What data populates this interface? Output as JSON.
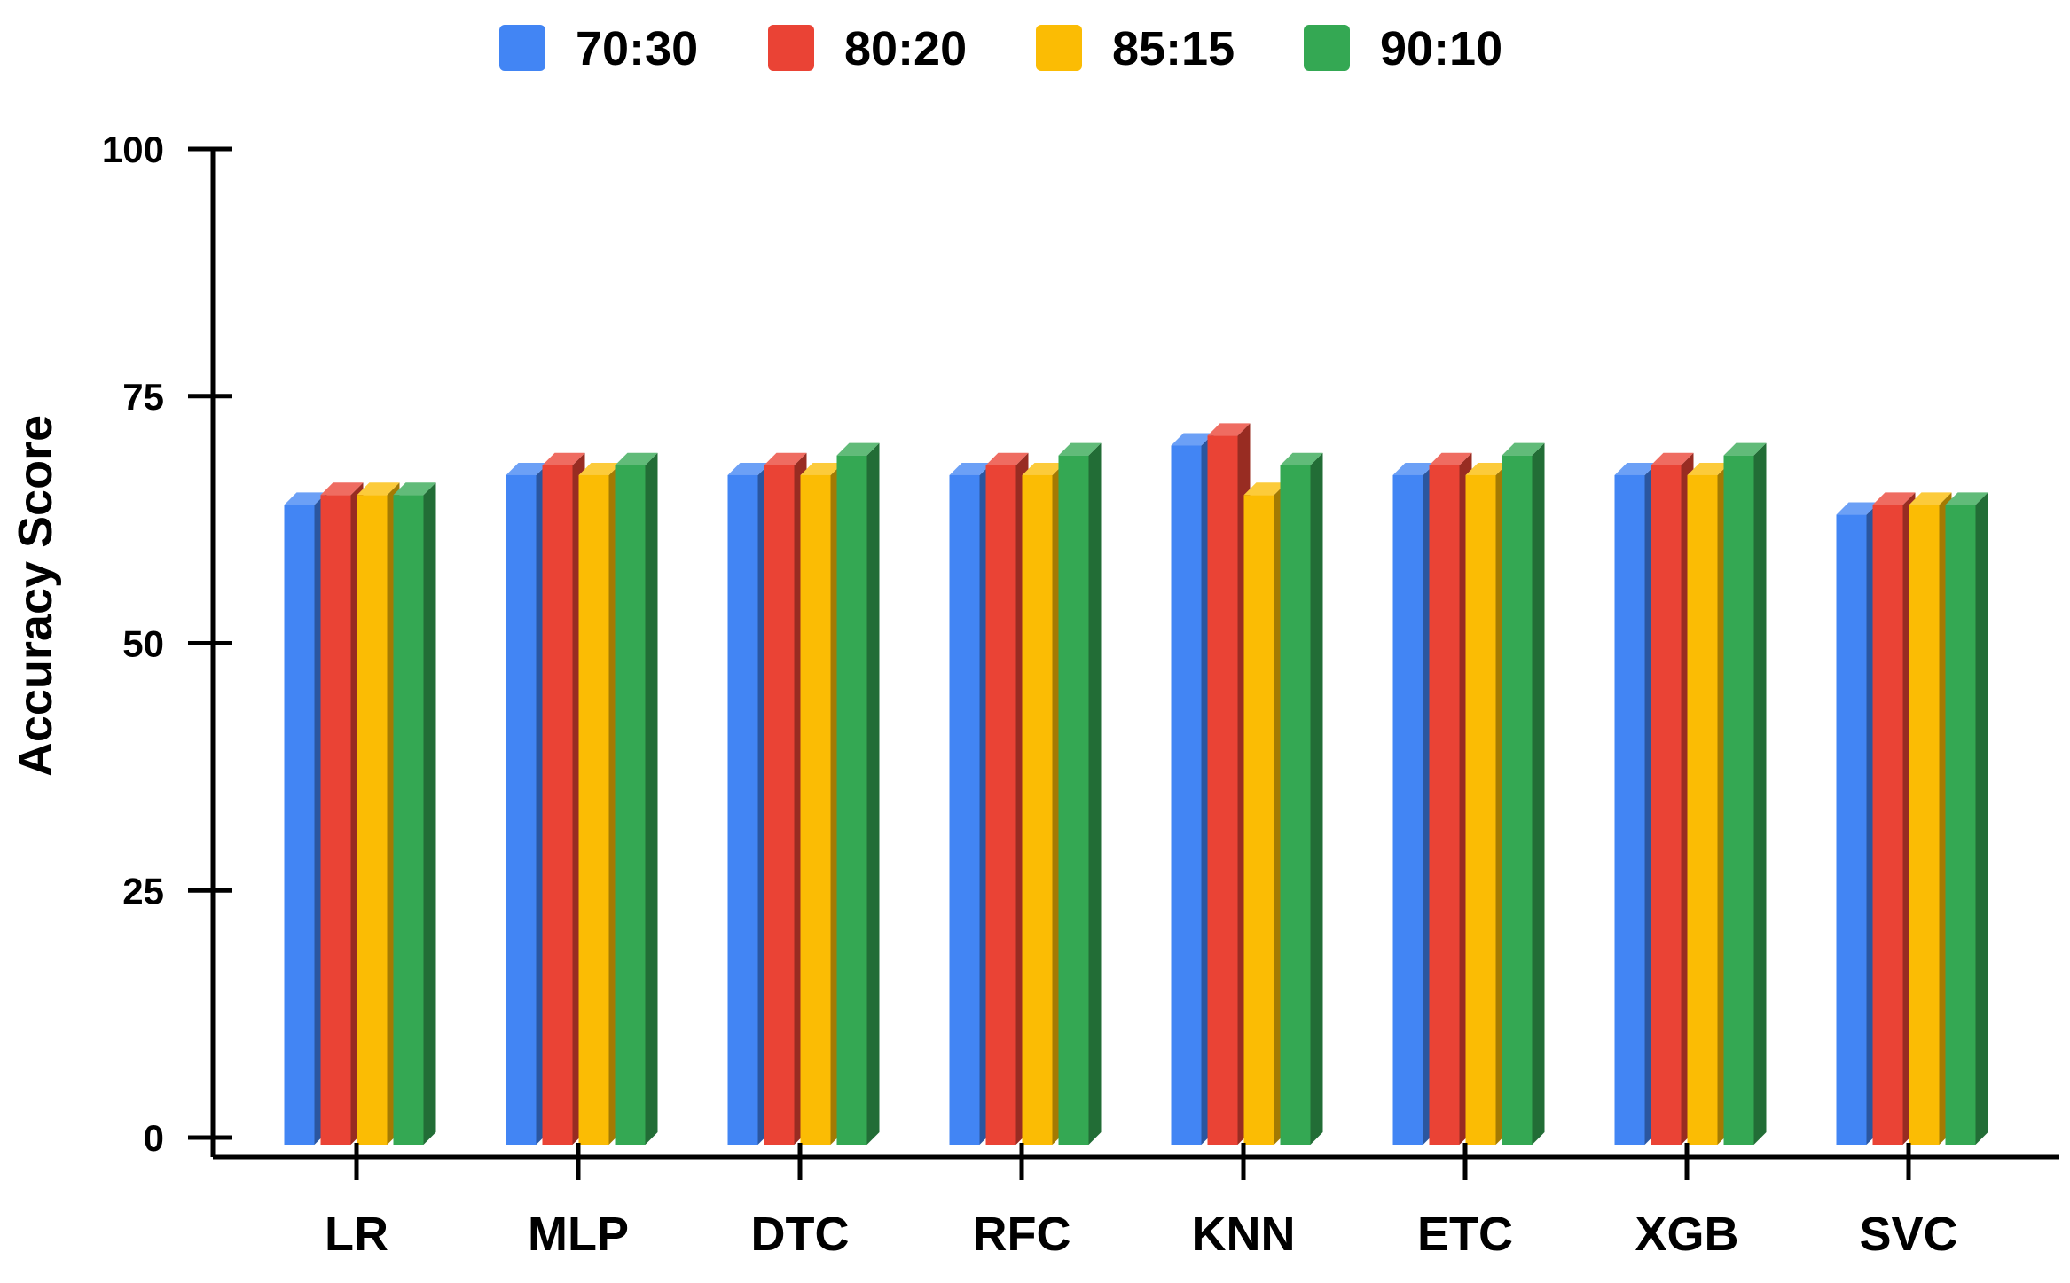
{
  "chart_data": {
    "type": "bar",
    "title": "",
    "xlabel": "",
    "ylabel": "Accuracy Score",
    "ylim": [
      0,
      100
    ],
    "yticks": [
      "0",
      "25",
      "50",
      "75",
      "100"
    ],
    "categories": [
      "LR",
      "MLP",
      "DTC",
      "RFC",
      "KNN",
      "ETC",
      "XGB",
      "SVC"
    ],
    "series": [
      {
        "name": "70:30",
        "color": "#4285F4",
        "values": [
          64,
          67,
          67,
          67,
          70,
          67,
          67,
          63
        ]
      },
      {
        "name": "80:20",
        "color": "#EA4335",
        "values": [
          65,
          68,
          68,
          68,
          71,
          68,
          68,
          64
        ]
      },
      {
        "name": "85:15",
        "color": "#FBBC04",
        "values": [
          65,
          67,
          67,
          67,
          65,
          67,
          67,
          64
        ]
      },
      {
        "name": "90:10",
        "color": "#34A853",
        "values": [
          65,
          68,
          69,
          69,
          68,
          69,
          69,
          64
        ]
      }
    ],
    "legend_position": "top-center",
    "grid": false,
    "style": "3d-bar"
  }
}
